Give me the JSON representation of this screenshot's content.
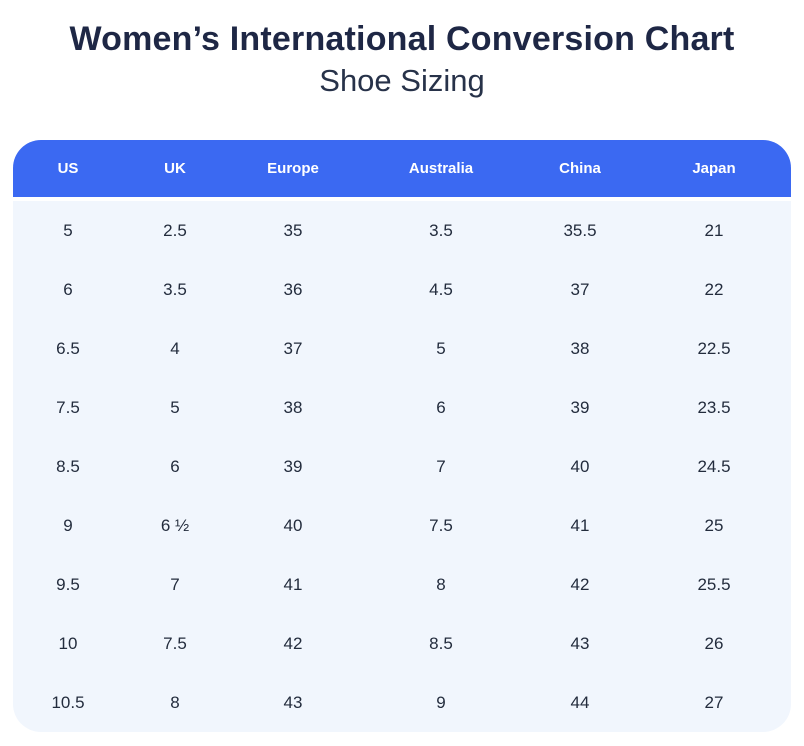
{
  "title": "Women’s International Conversion Chart",
  "subtitle": "Shoe Sizing",
  "colors": {
    "header_bg": "#3b69f2",
    "header_text": "#ffffff",
    "body_bg": "#f1f6fd",
    "title_text": "#1e2745",
    "cell_text": "#232c3d"
  },
  "chart_data": {
    "type": "table",
    "title": "Women’s International Conversion Chart",
    "subtitle": "Shoe Sizing",
    "columns": [
      "US",
      "UK",
      "Europe",
      "Australia",
      "China",
      "Japan"
    ],
    "rows": [
      [
        "5",
        "2.5",
        "35",
        "3.5",
        "35.5",
        "21"
      ],
      [
        "6",
        "3.5",
        "36",
        "4.5",
        "37",
        "22"
      ],
      [
        "6.5",
        "4",
        "37",
        "5",
        "38",
        "22.5"
      ],
      [
        "7.5",
        "5",
        "38",
        "6",
        "39",
        "23.5"
      ],
      [
        "8.5",
        "6",
        "39",
        "7",
        "40",
        "24.5"
      ],
      [
        "9",
        "6 ½",
        "40",
        "7.5",
        "41",
        "25"
      ],
      [
        "9.5",
        "7",
        "41",
        "8",
        "42",
        "25.5"
      ],
      [
        "10",
        "7.5",
        "42",
        "8.5",
        "43",
        "26"
      ],
      [
        "10.5",
        "8",
        "43",
        "9",
        "44",
        "27"
      ]
    ]
  }
}
